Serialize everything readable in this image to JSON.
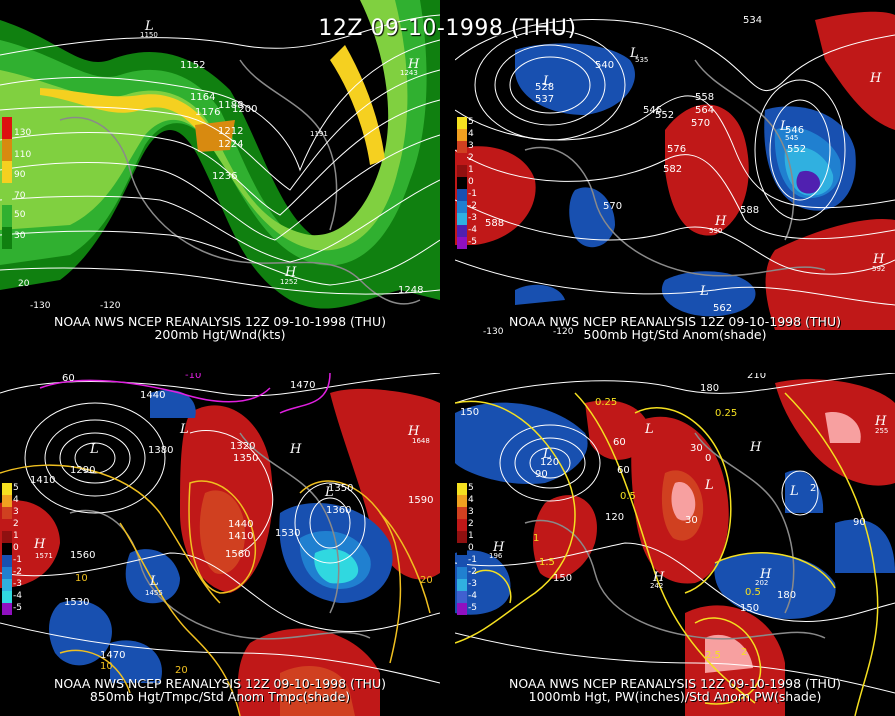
{
  "main_title": "12Z 09-10-1998 (THU)",
  "panels": [
    {
      "id": "p1",
      "line1": "NOAA NWS NCEP REANALYSIS 12Z 09-10-1998 (THU)",
      "line2": "200mb Hgt/Wnd(kts)",
      "legend": [
        "130",
        "110",
        "90",
        "70",
        "50",
        "30"
      ],
      "legend_colors": [
        "#dd1010",
        "#d88a10",
        "#f5d020",
        "#80d040",
        "#30b030",
        "#108010"
      ],
      "contour_labels": [
        "1152",
        "1164",
        "1176",
        "1188",
        "1200",
        "1212",
        "1224",
        "1236",
        "1248",
        "1252",
        "1191",
        "1150",
        "1243"
      ],
      "hl_marks": [
        "L",
        "H",
        "H"
      ],
      "edge_labels": [
        "-130",
        "-120",
        "20"
      ]
    },
    {
      "id": "p2",
      "line1": "NOAA NWS NCEP REANALYSIS 12Z 09-10-1998 (THU)",
      "line2": "500mb Hgt/Std Anom(shade)",
      "legend": [
        "5",
        "4",
        "3",
        "2",
        "1",
        "0",
        "-1",
        "-2",
        "-3",
        "-4",
        "-5"
      ],
      "legend_colors": [
        "#f5e020",
        "#f0a020",
        "#d04020",
        "#c01818",
        "#901010",
        "#000000",
        "#1850b0",
        "#2080d0",
        "#30b0e0",
        "#5020b0",
        "#9010c0"
      ],
      "contour_labels": [
        "534",
        "540",
        "546",
        "552",
        "558",
        "564",
        "570",
        "576",
        "582",
        "588",
        "528",
        "537",
        "535",
        "590",
        "592",
        "562",
        "546",
        "545",
        "552",
        "570",
        "588"
      ],
      "hl_marks": [
        "L",
        "L",
        "L",
        "H",
        "H",
        "L",
        "H"
      ],
      "edge_labels": [
        "-130",
        "-120"
      ]
    },
    {
      "id": "p3",
      "line1": "NOAA NWS NCEP REANALYSIS 12Z 09-10-1998 (THU)",
      "line2": "850mb Hgt/Tmpc/Std Anom Tmpc(shade)",
      "legend": [
        "5",
        "4",
        "3",
        "2",
        "1",
        "0",
        "-1",
        "-2",
        "-3",
        "-4",
        "-5"
      ],
      "legend_colors": [
        "#f5e020",
        "#f0a020",
        "#d04020",
        "#c01818",
        "#901010",
        "#000000",
        "#1850b0",
        "#2080d0",
        "#30b0e0",
        "#30d8e0",
        "#9010c0"
      ],
      "contour_labels": [
        "1440",
        "1410",
        "1380",
        "1350",
        "1320",
        "1290",
        "1470",
        "1530",
        "1560",
        "1590",
        "1440",
        "1410",
        "1350",
        "1360",
        "1530",
        "1560",
        "1470",
        "1455",
        "1571",
        "1648",
        "10",
        "20",
        "-10",
        "60",
        "10",
        "20"
      ],
      "hl_marks": [
        "L",
        "L",
        "L",
        "H",
        "H",
        "L",
        "H"
      ],
      "edge_labels": [
        "-130",
        "-120"
      ]
    },
    {
      "id": "p4",
      "line1": "NOAA NWS NCEP REANALYSIS 12Z 09-10-1998 (THU)",
      "line2": "1000mb Hgt, PW(inches)/Std Anom PW(shade)",
      "legend": [
        "5",
        "4",
        "3",
        "2",
        "1",
        "0",
        "-1",
        "-2",
        "-3",
        "-4",
        "-5"
      ],
      "legend_colors": [
        "#f5e020",
        "#f0a020",
        "#d04020",
        "#c01818",
        "#901010",
        "#000000",
        "#1850b0",
        "#2080d0",
        "#30b0e0",
        "#4060d0",
        "#9010c0"
      ],
      "contour_labels": [
        "150",
        "120",
        "90",
        "60",
        "30",
        "0",
        "180",
        "210",
        "150",
        "120",
        "90",
        "60",
        "30",
        "0.25",
        "0.5",
        "1",
        "1.5",
        "2",
        "2.5",
        "180",
        "150",
        "0.25",
        "0.5",
        "255",
        "196",
        "242",
        "202",
        "2"
      ],
      "hl_marks": [
        "L",
        "L",
        "L",
        "H",
        "H",
        "H",
        "L",
        "H",
        "H"
      ],
      "edge_labels": [
        "-130",
        "-120"
      ]
    }
  ]
}
